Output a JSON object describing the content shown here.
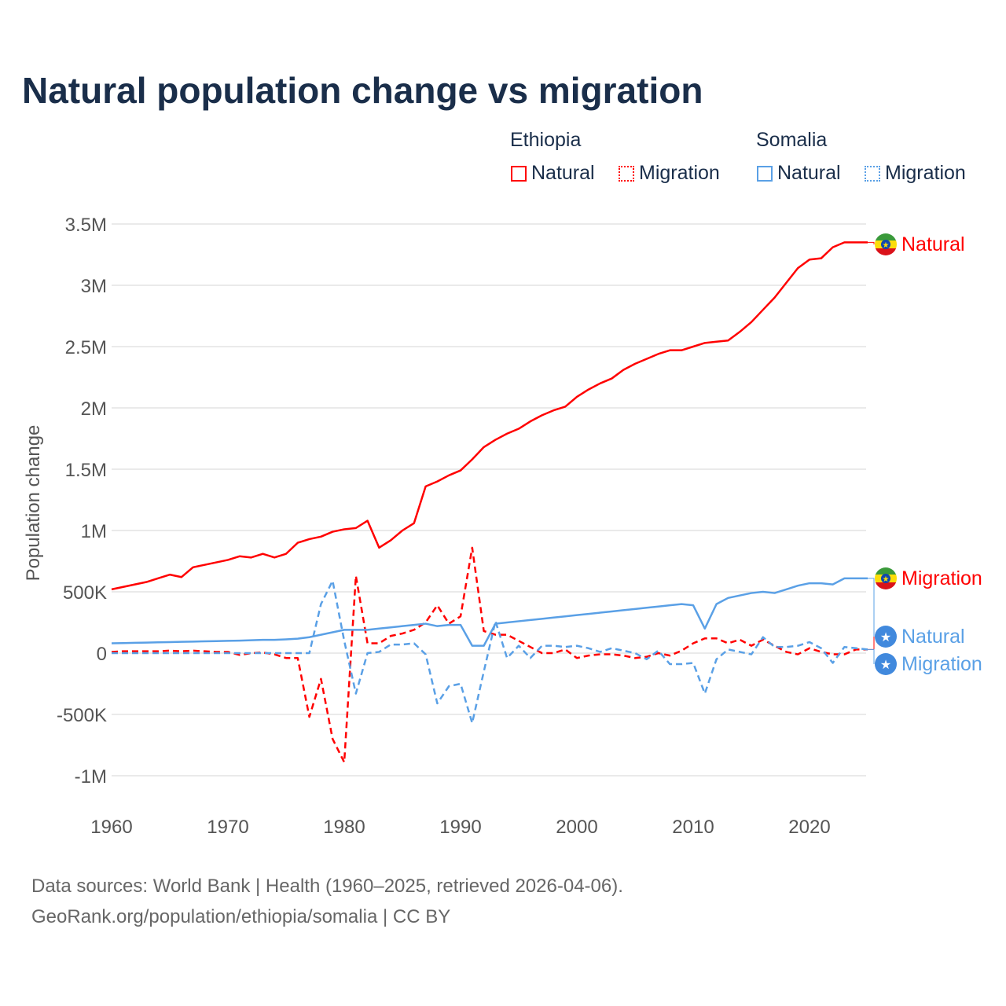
{
  "chart_data": {
    "type": "line",
    "title": "Natural population change vs migration",
    "ylabel": "Population change",
    "xlabel": "",
    "ylim": [
      -1000000,
      3500000
    ],
    "xlim": [
      1960,
      2025
    ],
    "yticks": [
      {
        "v": 3500000,
        "l": "3.5M"
      },
      {
        "v": 3000000,
        "l": "3M"
      },
      {
        "v": 2500000,
        "l": "2.5M"
      },
      {
        "v": 2000000,
        "l": "2M"
      },
      {
        "v": 1500000,
        "l": "1.5M"
      },
      {
        "v": 1000000,
        "l": "1M"
      },
      {
        "v": 500000,
        "l": "500K"
      },
      {
        "v": 0,
        "l": "0"
      },
      {
        "v": -500000,
        "l": "-500K"
      },
      {
        "v": -1000000,
        "l": "-1M"
      }
    ],
    "xticks": [
      "1960",
      "1970",
      "1980",
      "1990",
      "2000",
      "2010",
      "2020"
    ],
    "x_start": 1960,
    "legend": {
      "groups": [
        {
          "name": "Ethiopia",
          "items": [
            "Natural",
            "Migration"
          ]
        },
        {
          "name": "Somalia",
          "items": [
            "Natural",
            "Migration"
          ]
        }
      ],
      "placement": "top-right"
    },
    "series": [
      {
        "name": "Ethiopia Natural",
        "country": "Ethiopia",
        "end_label": "Natural",
        "color": "#ff0000",
        "dash": false,
        "values_k": [
          520,
          540,
          560,
          580,
          610,
          640,
          620,
          700,
          720,
          740,
          760,
          790,
          780,
          810,
          780,
          810,
          900,
          930,
          950,
          990,
          1010,
          1020,
          1080,
          860,
          920,
          1000,
          1060,
          1360,
          1400,
          1450,
          1490,
          1580,
          1680,
          1740,
          1790,
          1830,
          1890,
          1940,
          1980,
          2010,
          2090,
          2150,
          2200,
          2240,
          2310,
          2360,
          2400,
          2440,
          2470,
          2470,
          2500,
          2530,
          2540,
          2550,
          2620,
          2700,
          2800,
          2900,
          3020,
          3140,
          3210,
          3220,
          3310,
          3350,
          3350,
          3350
        ]
      },
      {
        "name": "Ethiopia Migration",
        "country": "Ethiopia",
        "end_label": "Migration",
        "color": "#ff0000",
        "dash": true,
        "values_k": [
          10,
          15,
          15,
          15,
          15,
          20,
          15,
          20,
          15,
          10,
          10,
          -15,
          0,
          5,
          -10,
          -40,
          -40,
          -520,
          -210,
          -700,
          -890,
          630,
          80,
          80,
          140,
          160,
          190,
          250,
          390,
          240,
          300,
          860,
          180,
          150,
          150,
          100,
          50,
          0,
          0,
          30,
          -40,
          -20,
          -10,
          -10,
          -20,
          -40,
          -30,
          0,
          -20,
          20,
          80,
          120,
          120,
          80,
          110,
          60,
          110,
          60,
          10,
          -10,
          40,
          10,
          -10,
          -10,
          30,
          30
        ]
      },
      {
        "name": "Somalia Natural",
        "country": "Somalia",
        "end_label": "Natural",
        "color": "#5aa0e6",
        "dash": false,
        "values_k": [
          80,
          82,
          84,
          86,
          88,
          90,
          92,
          94,
          96,
          98,
          100,
          102,
          105,
          108,
          108,
          112,
          118,
          130,
          150,
          170,
          190,
          190,
          190,
          200,
          210,
          220,
          230,
          240,
          220,
          230,
          230,
          60,
          60,
          240,
          250,
          260,
          270,
          280,
          290,
          300,
          310,
          320,
          330,
          340,
          350,
          360,
          370,
          380,
          390,
          400,
          390,
          200,
          400,
          450,
          470,
          490,
          500,
          490,
          520,
          550,
          570,
          570,
          560,
          610,
          610,
          610
        ]
      },
      {
        "name": "Somalia Migration",
        "country": "Somalia",
        "end_label": "Migration",
        "color": "#5aa0e6",
        "dash": true,
        "values_k": [
          0,
          0,
          0,
          0,
          0,
          0,
          0,
          0,
          0,
          0,
          0,
          0,
          0,
          0,
          0,
          0,
          0,
          0,
          400,
          590,
          100,
          -330,
          0,
          10,
          70,
          70,
          80,
          -10,
          -410,
          -270,
          -250,
          -570,
          -150,
          260,
          -40,
          60,
          -40,
          60,
          60,
          50,
          60,
          40,
          10,
          40,
          20,
          0,
          -50,
          20,
          -90,
          -90,
          -80,
          -330,
          -50,
          30,
          10,
          -10,
          130,
          50,
          50,
          60,
          90,
          40,
          -80,
          50,
          40,
          30
        ]
      }
    ]
  },
  "sources": [
    "Data sources: World Bank | Health (1960–2025, retrieved 2026-04-06).",
    "GeoRank.org/population/ethiopia/somalia | CC BY"
  ]
}
